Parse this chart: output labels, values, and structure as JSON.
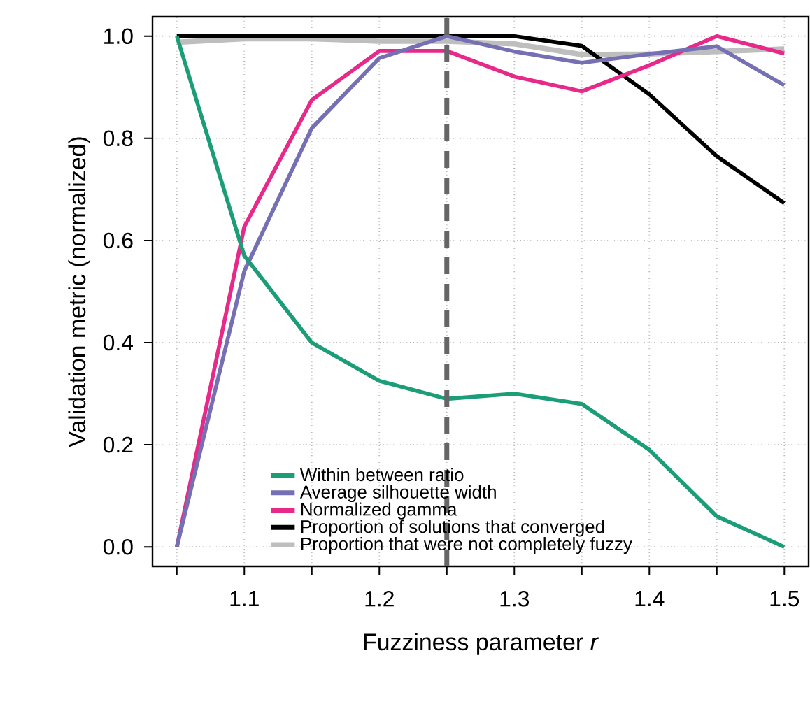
{
  "chart_data": {
    "type": "line",
    "xlabel": "Fuzziness parameter *r*",
    "ylabel": "Validation metric (normalized)",
    "x": [
      1.05,
      1.1,
      1.15,
      1.2,
      1.25,
      1.3,
      1.35,
      1.4,
      1.45,
      1.5
    ],
    "series": [
      {
        "name": "Within between ratio",
        "color": "#1b9e77",
        "values": [
          1.0,
          0.57,
          0.4,
          0.325,
          0.29,
          0.3,
          0.28,
          0.19,
          0.06,
          0.0
        ]
      },
      {
        "name": "Average silhouette width",
        "color": "#7570b3",
        "values": [
          0.0,
          0.54,
          0.82,
          0.957,
          1.0,
          0.97,
          0.948,
          0.965,
          0.98,
          0.904
        ]
      },
      {
        "name": "Normalized gamma",
        "color": "#e7298a",
        "values": [
          0.0,
          0.627,
          0.875,
          0.971,
          0.971,
          0.921,
          0.892,
          0.943,
          1.0,
          0.966
        ]
      },
      {
        "name": "Proportion of solutions that converged",
        "color": "#000000",
        "values": [
          1.0,
          1.0,
          1.0,
          1.0,
          1.0,
          1.0,
          0.981,
          0.886,
          0.765,
          0.673
        ]
      },
      {
        "name": "Proportion that were not completely fuzzy",
        "color": "#bebebe",
        "values": [
          0.988,
          0.995,
          0.995,
          0.99,
          0.99,
          0.985,
          0.964,
          0.965,
          0.97,
          0.975
        ]
      }
    ],
    "xlim": [
      1.032,
      1.518
    ],
    "ylim": [
      -0.038,
      1.038
    ],
    "xticks": [
      {
        "value": 1.05,
        "label": null
      },
      1.1,
      {
        "value": 1.15,
        "label": null
      },
      1.2,
      {
        "value": 1.25,
        "label": null
      },
      1.3,
      {
        "value": 1.35,
        "label": null
      },
      1.4,
      {
        "value": 1.45,
        "label": null
      },
      1.5
    ],
    "yticks": [
      {
        "value": 0,
        "label": "0.0"
      },
      {
        "value": 0.2,
        "label": "0.2"
      },
      {
        "value": 0.4,
        "label": "0.4"
      },
      {
        "value": 0.6,
        "label": "0.6"
      },
      {
        "value": 0.8,
        "label": "0.8"
      },
      {
        "value": 1.0,
        "label": "1.0"
      }
    ],
    "ref_lines": [
      {
        "axis": "x",
        "value": 1.25,
        "color": "#666666",
        "line_style": "dashed"
      }
    ],
    "grid": true,
    "legend": "bottom",
    "line_style": "solid",
    "marker": "none"
  }
}
